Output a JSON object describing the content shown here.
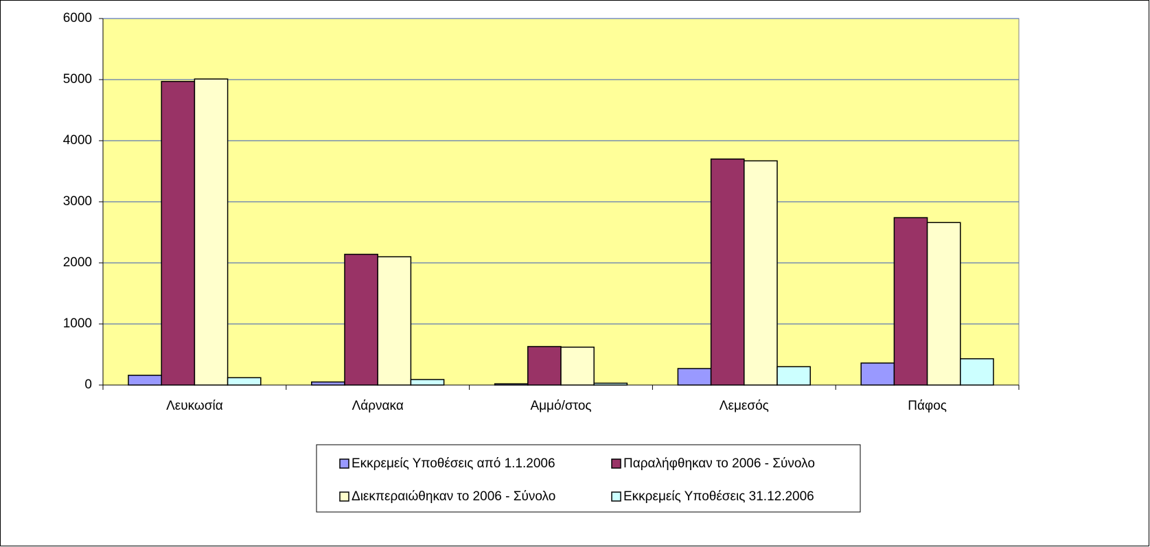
{
  "chart_data": {
    "type": "bar",
    "categories": [
      "Λευκωσία",
      "Λάρνακα",
      "Αμμό/στος",
      "Λεμεσός",
      "Πάφος"
    ],
    "series": [
      {
        "name": "Εκκρεμείς Υποθέσεις από 1.1.2006",
        "color": "#9999ff",
        "values": [
          160,
          50,
          20,
          270,
          360
        ]
      },
      {
        "name": "Παραλήφθηκαν το 2006 - Σύνολο",
        "color": "#993366",
        "values": [
          4970,
          2140,
          630,
          3700,
          2740
        ]
      },
      {
        "name": "Διεκπεραιώθηκαν το 2006 - Σύνολο",
        "color": "#ffffcc",
        "values": [
          5010,
          2100,
          620,
          3670,
          2660
        ]
      },
      {
        "name": "Εκκρεμείς Υποθέσεις 31.12.2006",
        "color": "#ccffff",
        "values": [
          120,
          90,
          30,
          300,
          430
        ]
      }
    ],
    "ylim": [
      0,
      6000
    ],
    "yticks": [
      0,
      1000,
      2000,
      3000,
      4000,
      5000,
      6000
    ],
    "grid": true,
    "plot_background": "#ffff99",
    "legend": "bottom"
  }
}
